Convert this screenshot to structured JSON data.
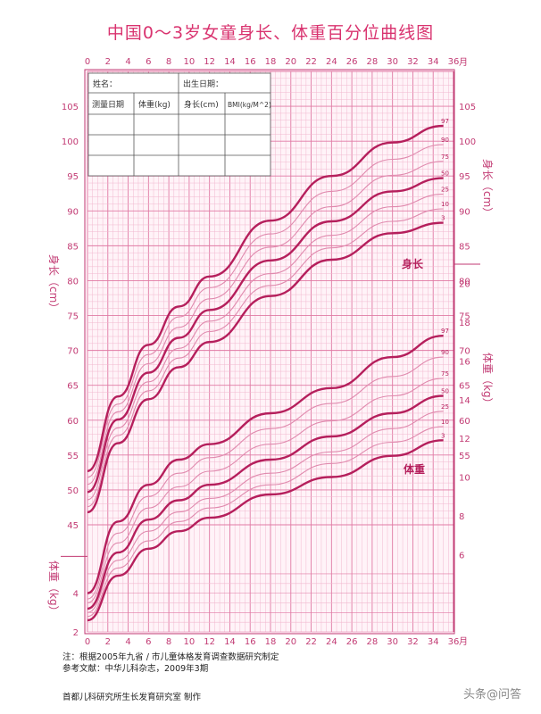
{
  "title": "中国0～3岁女童身长、体重百分位曲线图",
  "form": {
    "name_label": "姓名：",
    "birth_label": "出生日期：",
    "headers": [
      "测量日期",
      "体重(kg)",
      "身长(cm)",
      "BMI(kg/M^2)"
    ]
  },
  "axes": {
    "month_unit": "月",
    "left_length_label": "身长（cm）",
    "left_weight_label": "体重（kg）",
    "right_length_label": "身长（cm）",
    "right_weight_label": "体重（kg）",
    "length_curve_label": "身长",
    "weight_curve_label": "体重"
  },
  "notes": {
    "line1": "注：根据2005年九省 / 市儿童体格发育调查数据研究制定",
    "line2": "参考文献：中华儿科杂志，2009年3期"
  },
  "credit": "首都儿科研究所生长发育研究室  制作",
  "watermark": "头条@问答",
  "colors": {
    "major": "#b51f5c",
    "minor": "#e08aae",
    "grid": "#f2b8cf",
    "gridMajor": "#e07aa4"
  },
  "chart_data": [
    {
      "type": "line",
      "title": "身长",
      "xlabel": "月",
      "ylabel": "身长（cm）",
      "xlim": [
        0,
        36
      ],
      "ylim": [
        45,
        110
      ],
      "x": [
        0,
        3,
        6,
        9,
        12,
        18,
        24,
        30,
        35
      ],
      "series": [
        {
          "name": "3",
          "values": [
            46.8,
            56.7,
            63.0,
            67.6,
            71.2,
            77.8,
            83.0,
            86.8,
            88.3
          ]
        },
        {
          "name": "10",
          "values": [
            47.6,
            57.8,
            64.2,
            68.9,
            72.7,
            79.3,
            84.7,
            88.5,
            90.3
          ]
        },
        {
          "name": "25",
          "values": [
            48.6,
            58.9,
            65.5,
            70.3,
            74.2,
            81.0,
            86.5,
            90.6,
            92.4
          ]
        },
        {
          "name": "50",
          "values": [
            49.7,
            60.1,
            66.8,
            71.8,
            75.8,
            82.9,
            88.5,
            92.8,
            94.7
          ]
        },
        {
          "name": "75",
          "values": [
            50.8,
            61.2,
            68.1,
            73.3,
            77.4,
            84.8,
            90.6,
            95.1,
            97.1
          ]
        },
        {
          "name": "90",
          "values": [
            51.8,
            62.3,
            69.4,
            74.8,
            79.0,
            86.7,
            92.8,
            97.4,
            99.5
          ]
        },
        {
          "name": "97",
          "values": [
            52.7,
            63.4,
            70.8,
            76.3,
            80.6,
            88.6,
            95.0,
            99.8,
            102.2
          ]
        }
      ]
    },
    {
      "type": "line",
      "title": "体重",
      "xlabel": "月",
      "ylabel": "体重（kg）",
      "xlim": [
        0,
        36
      ],
      "ylim": [
        2,
        21
      ],
      "x": [
        0,
        3,
        6,
        9,
        12,
        18,
        24,
        30,
        35
      ],
      "series": [
        {
          "name": "3",
          "values": [
            2.6,
            4.9,
            6.3,
            7.2,
            7.9,
            9.1,
            10.0,
            11.1,
            11.9
          ]
        },
        {
          "name": "10",
          "values": [
            2.8,
            5.3,
            6.7,
            7.7,
            8.4,
            9.6,
            10.7,
            11.8,
            12.6
          ]
        },
        {
          "name": "25",
          "values": [
            3.0,
            5.7,
            7.2,
            8.2,
            8.9,
            10.2,
            11.3,
            12.5,
            13.4
          ]
        },
        {
          "name": "50",
          "values": [
            3.2,
            6.1,
            7.8,
            8.8,
            9.6,
            10.9,
            12.1,
            13.3,
            14.2
          ]
        },
        {
          "name": "75",
          "values": [
            3.5,
            6.6,
            8.4,
            9.5,
            10.3,
            11.7,
            12.9,
            14.2,
            15.1
          ]
        },
        {
          "name": "90",
          "values": [
            3.7,
            7.1,
            9.0,
            10.2,
            11.0,
            12.5,
            13.8,
            15.2,
            16.2
          ]
        },
        {
          "name": "97",
          "values": [
            4.0,
            7.7,
            9.6,
            10.9,
            11.7,
            13.3,
            14.6,
            16.2,
            17.3
          ]
        }
      ]
    }
  ]
}
